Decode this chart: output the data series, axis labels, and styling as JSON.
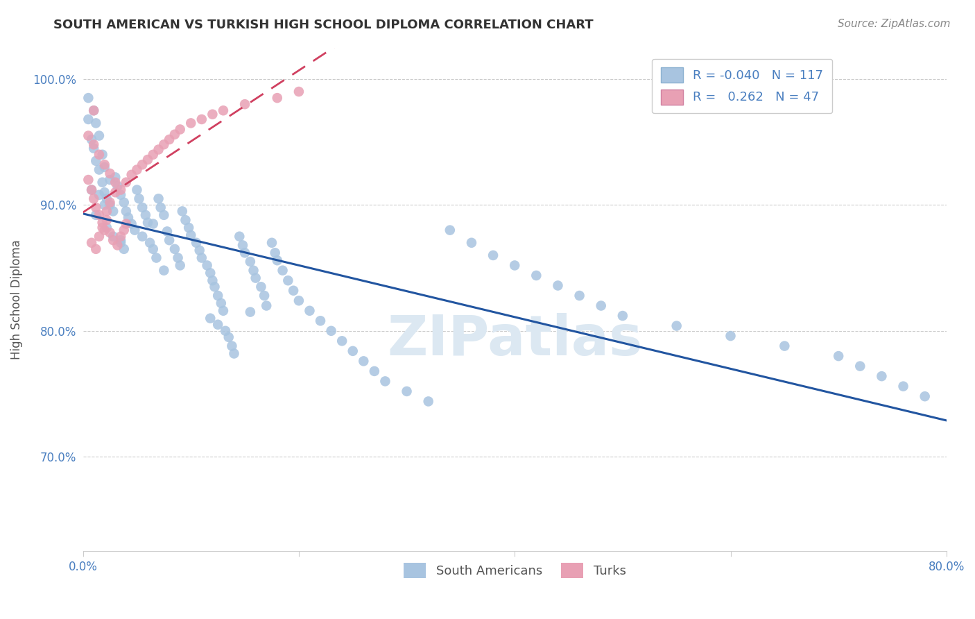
{
  "title": "SOUTH AMERICAN VS TURKISH HIGH SCHOOL DIPLOMA CORRELATION CHART",
  "source": "Source: ZipAtlas.com",
  "ylabel": "High School Diploma",
  "x_min": 0.0,
  "x_max": 0.8,
  "y_min": 0.625,
  "y_max": 1.025,
  "x_ticks": [
    0.0,
    0.2,
    0.4,
    0.6,
    0.8
  ],
  "x_tick_labels": [
    "0.0%",
    "",
    "",
    "",
    "80.0%"
  ],
  "y_ticks": [
    0.7,
    0.8,
    0.9,
    1.0
  ],
  "y_tick_labels": [
    "70.0%",
    "80.0%",
    "90.0%",
    "100.0%"
  ],
  "r_blue": -0.04,
  "n_blue": 117,
  "r_pink": 0.262,
  "n_pink": 47,
  "blue_color": "#a8c4e0",
  "pink_color": "#e8a0b4",
  "blue_line_color": "#2255a0",
  "pink_line_color": "#d04060",
  "legend_label_blue": "South Americans",
  "legend_label_pink": "Turks",
  "watermark": "ZIPatlas",
  "title_color": "#333333",
  "axis_color": "#4a7fc0",
  "south_american_x": [
    0.005,
    0.008,
    0.01,
    0.012,
    0.015,
    0.018,
    0.02,
    0.022,
    0.025,
    0.028,
    0.005,
    0.01,
    0.012,
    0.015,
    0.018,
    0.02,
    0.025,
    0.008,
    0.015,
    0.02,
    0.03,
    0.032,
    0.035,
    0.038,
    0.04,
    0.042,
    0.045,
    0.028,
    0.035,
    0.038,
    0.05,
    0.052,
    0.055,
    0.058,
    0.06,
    0.048,
    0.055,
    0.062,
    0.065,
    0.068,
    0.07,
    0.072,
    0.075,
    0.065,
    0.078,
    0.08,
    0.085,
    0.088,
    0.09,
    0.075,
    0.092,
    0.095,
    0.098,
    0.1,
    0.105,
    0.108,
    0.11,
    0.115,
    0.118,
    0.12,
    0.122,
    0.125,
    0.128,
    0.13,
    0.118,
    0.125,
    0.132,
    0.135,
    0.138,
    0.14,
    0.145,
    0.148,
    0.15,
    0.155,
    0.158,
    0.16,
    0.165,
    0.168,
    0.17,
    0.155,
    0.175,
    0.178,
    0.18,
    0.185,
    0.19,
    0.195,
    0.2,
    0.21,
    0.22,
    0.23,
    0.24,
    0.25,
    0.26,
    0.27,
    0.28,
    0.3,
    0.32,
    0.34,
    0.36,
    0.38,
    0.4,
    0.42,
    0.44,
    0.46,
    0.48,
    0.5,
    0.55,
    0.6,
    0.65,
    0.7,
    0.72,
    0.74,
    0.76,
    0.78,
    0.012,
    0.022,
    0.035
  ],
  "south_american_y": [
    0.968,
    0.952,
    0.945,
    0.935,
    0.928,
    0.918,
    0.91,
    0.905,
    0.9,
    0.895,
    0.985,
    0.975,
    0.965,
    0.955,
    0.94,
    0.93,
    0.92,
    0.912,
    0.908,
    0.9,
    0.922,
    0.915,
    0.908,
    0.902,
    0.895,
    0.89,
    0.885,
    0.875,
    0.87,
    0.865,
    0.912,
    0.905,
    0.898,
    0.892,
    0.886,
    0.88,
    0.875,
    0.87,
    0.865,
    0.858,
    0.905,
    0.898,
    0.892,
    0.885,
    0.879,
    0.872,
    0.865,
    0.858,
    0.852,
    0.848,
    0.895,
    0.888,
    0.882,
    0.876,
    0.87,
    0.864,
    0.858,
    0.852,
    0.846,
    0.84,
    0.835,
    0.828,
    0.822,
    0.816,
    0.81,
    0.805,
    0.8,
    0.795,
    0.788,
    0.782,
    0.875,
    0.868,
    0.862,
    0.855,
    0.848,
    0.842,
    0.835,
    0.828,
    0.82,
    0.815,
    0.87,
    0.862,
    0.856,
    0.848,
    0.84,
    0.832,
    0.824,
    0.816,
    0.808,
    0.8,
    0.792,
    0.784,
    0.776,
    0.768,
    0.76,
    0.752,
    0.744,
    0.88,
    0.87,
    0.86,
    0.852,
    0.844,
    0.836,
    0.828,
    0.82,
    0.812,
    0.804,
    0.796,
    0.788,
    0.78,
    0.772,
    0.764,
    0.756,
    0.748,
    0.892,
    0.882,
    0.872
  ],
  "turkish_x": [
    0.005,
    0.008,
    0.01,
    0.012,
    0.015,
    0.018,
    0.02,
    0.022,
    0.025,
    0.008,
    0.012,
    0.015,
    0.018,
    0.022,
    0.025,
    0.028,
    0.032,
    0.035,
    0.038,
    0.04,
    0.005,
    0.01,
    0.015,
    0.02,
    0.025,
    0.03,
    0.035,
    0.04,
    0.045,
    0.05,
    0.055,
    0.06,
    0.065,
    0.07,
    0.075,
    0.08,
    0.085,
    0.09,
    0.1,
    0.11,
    0.12,
    0.13,
    0.15,
    0.18,
    0.2,
    0.01,
    0.03
  ],
  "turkish_y": [
    0.92,
    0.912,
    0.905,
    0.898,
    0.892,
    0.886,
    0.88,
    0.895,
    0.902,
    0.87,
    0.865,
    0.875,
    0.882,
    0.888,
    0.878,
    0.872,
    0.868,
    0.875,
    0.88,
    0.885,
    0.955,
    0.948,
    0.94,
    0.932,
    0.925,
    0.918,
    0.912,
    0.918,
    0.924,
    0.928,
    0.932,
    0.936,
    0.94,
    0.944,
    0.948,
    0.952,
    0.956,
    0.96,
    0.965,
    0.968,
    0.972,
    0.975,
    0.98,
    0.985,
    0.99,
    0.975,
    0.91
  ]
}
